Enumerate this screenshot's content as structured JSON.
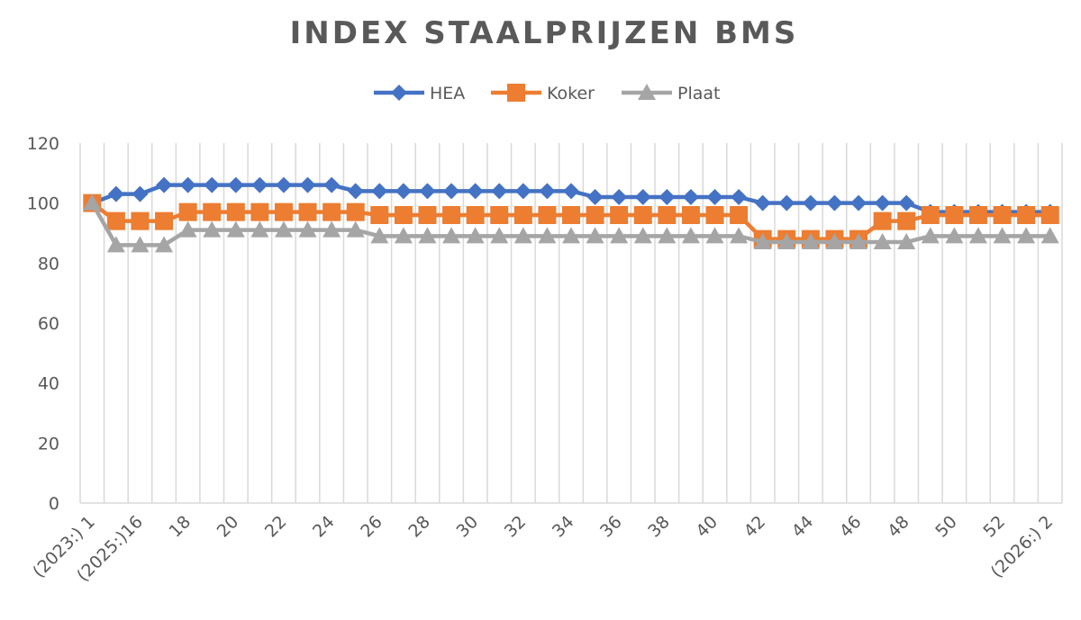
{
  "chart_data": {
    "type": "line",
    "title": "INDEX STAALPRIJZEN BMS",
    "xlabel": "",
    "ylabel": "",
    "ylim": [
      0,
      120
    ],
    "yticks": [
      0,
      20,
      40,
      60,
      80,
      100,
      120
    ],
    "grid": "vertical",
    "legend_position": "top",
    "categories": [
      "(2023:) 1",
      "15",
      "(2025:)16",
      "17",
      "18",
      "19",
      "20",
      "21",
      "22",
      "23",
      "24",
      "25",
      "26",
      "27",
      "28",
      "29",
      "30",
      "31",
      "32",
      "33",
      "34",
      "35",
      "36",
      "37",
      "38",
      "39",
      "40",
      "41",
      "42",
      "43",
      "44",
      "45",
      "46",
      "47",
      "48",
      "49",
      "50",
      "51",
      "52",
      "1",
      "(2026:) 2"
    ],
    "shown_tick_labels": [
      "(2023:) 1",
      "(2025:)16",
      "18",
      "20",
      "22",
      "24",
      "26",
      "28",
      "30",
      "32",
      "34",
      "36",
      "38",
      "40",
      "42",
      "44",
      "46",
      "48",
      "50",
      "52",
      "(2026:) 2"
    ],
    "series": [
      {
        "name": "HEA",
        "color": "#4472C4",
        "marker": "diamond",
        "values": [
          100,
          103,
          103,
          106,
          106,
          106,
          106,
          106,
          106,
          106,
          106,
          104,
          104,
          104,
          104,
          104,
          104,
          104,
          104,
          104,
          104,
          102,
          102,
          102,
          102,
          102,
          102,
          102,
          100,
          100,
          100,
          100,
          100,
          100,
          100,
          97,
          97,
          97,
          97,
          97,
          97
        ]
      },
      {
        "name": "Koker",
        "color": "#ED7D31",
        "marker": "square",
        "values": [
          100,
          94,
          94,
          94,
          97,
          97,
          97,
          97,
          97,
          97,
          97,
          97,
          96,
          96,
          96,
          96,
          96,
          96,
          96,
          96,
          96,
          96,
          96,
          96,
          96,
          96,
          96,
          96,
          88,
          88,
          88,
          88,
          88,
          94,
          94,
          96,
          96,
          96,
          96,
          96,
          96
        ]
      },
      {
        "name": "Plaat",
        "color": "#A5A5A5",
        "marker": "triangle",
        "values": [
          100,
          86,
          86,
          86,
          91,
          91,
          91,
          91,
          91,
          91,
          91,
          91,
          89,
          89,
          89,
          89,
          89,
          89,
          89,
          89,
          89,
          89,
          89,
          89,
          89,
          89,
          89,
          89,
          87,
          87,
          87,
          87,
          87,
          87,
          87,
          89,
          89,
          89,
          89,
          89,
          89
        ]
      }
    ]
  }
}
